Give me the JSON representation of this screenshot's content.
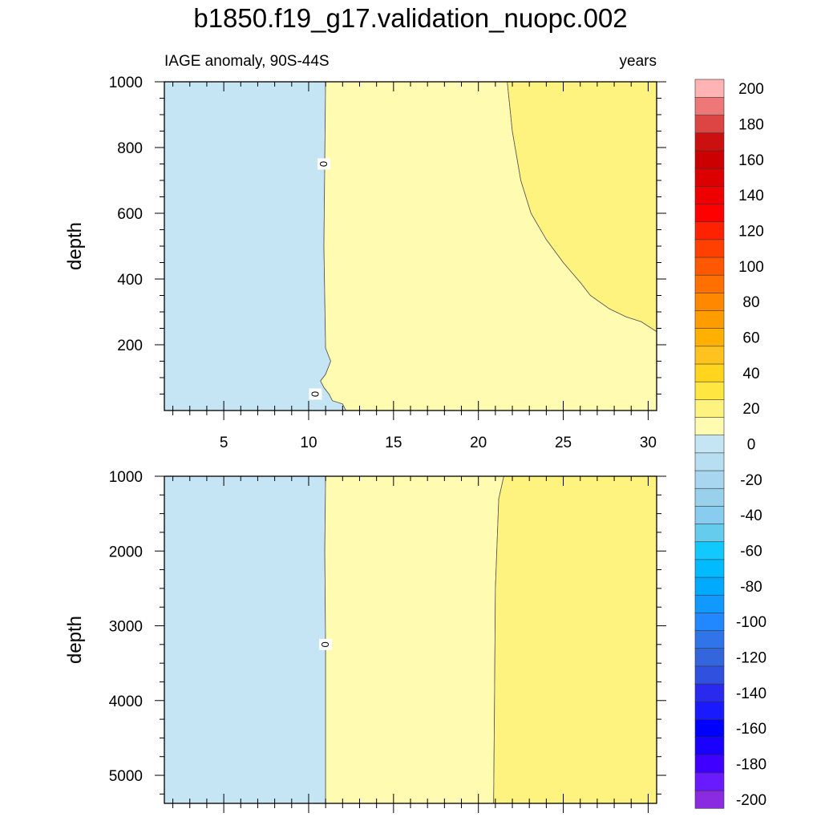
{
  "title": "b1850.f19_g17.validation_nuopc.002",
  "chart_data": {
    "type": "contour",
    "left_label": "IAGE anomaly, 90S-44S",
    "right_label": "years",
    "xaxis": {
      "range": [
        1.5,
        30.5
      ],
      "ticks": [
        5,
        10,
        15,
        20,
        25,
        30
      ]
    },
    "contour_label": "0",
    "colorbar": {
      "levels": [
        -200,
        -190,
        -180,
        -170,
        -160,
        -150,
        -140,
        -130,
        -120,
        -110,
        -100,
        -90,
        -80,
        -70,
        -60,
        -50,
        -40,
        -30,
        -20,
        -10,
        0,
        10,
        20,
        30,
        40,
        50,
        60,
        70,
        80,
        90,
        100,
        110,
        120,
        130,
        140,
        150,
        160,
        170,
        180,
        190,
        200
      ],
      "labels": [
        "200",
        "180",
        "160",
        "140",
        "120",
        "100",
        "80",
        "60",
        "40",
        "20",
        "0",
        "-20",
        "-40",
        "-60",
        "-80",
        "-100",
        "-120",
        "-140",
        "-160",
        "-180",
        "-200"
      ],
      "colors": [
        "#8a2be2",
        "#6a1aff",
        "#4000ff",
        "#1a00ff",
        "#0000ff",
        "#1a1aff",
        "#2a2aee",
        "#3050e0",
        "#3366dd",
        "#2f74e8",
        "#2288ff",
        "#1199ff",
        "#00aaff",
        "#00bbff",
        "#11c8ff",
        "#66ccee",
        "#88ccf0",
        "#99d0ec",
        "#a8d6f0",
        "#b8def2",
        "#c5e5f5",
        "#fffbb0",
        "#fff380",
        "#ffe640",
        "#ffd51e",
        "#ffc21e",
        "#ffb000",
        "#ff9c00",
        "#ff8800",
        "#ff7000",
        "#ff5800",
        "#ff4000",
        "#ff2200",
        "#ff0000",
        "#ee0000",
        "#dd0000",
        "#cc0000",
        "#cc1010",
        "#dd4444",
        "#ee7777",
        "#ffb3b3"
      ]
    },
    "panels": [
      {
        "name": "upper",
        "ylabel": "depth",
        "yaxis": {
          "range": [
            1000,
            0
          ],
          "ticks": [
            200,
            400,
            600,
            800,
            1000
          ],
          "minor_step": 50,
          "minor_start": 50
        },
        "fills": [
          {
            "color": "#c5e5f5",
            "points": [
              [
                1.5,
                0
              ],
              [
                1.5,
                1000
              ],
              [
                11.0,
                1000
              ],
              [
                10.95,
                760
              ],
              [
                10.9,
                500
              ],
              [
                11.0,
                190
              ],
              [
                11.3,
                150
              ],
              [
                11.0,
                110
              ],
              [
                10.7,
                90
              ],
              [
                10.9,
                70
              ],
              [
                11.2,
                50
              ],
              [
                11.4,
                30
              ],
              [
                12.0,
                20
              ],
              [
                12.2,
                0
              ]
            ]
          },
          {
            "color": "#fffbb0",
            "points": [
              [
                12.2,
                0
              ],
              [
                12.0,
                20
              ],
              [
                11.4,
                30
              ],
              [
                11.2,
                50
              ],
              [
                10.9,
                70
              ],
              [
                10.7,
                90
              ],
              [
                11.0,
                110
              ],
              [
                11.3,
                150
              ],
              [
                11.0,
                190
              ],
              [
                10.9,
                500
              ],
              [
                10.95,
                760
              ],
              [
                11.0,
                1000
              ],
              [
                21.7,
                1000
              ],
              [
                22.0,
                850
              ],
              [
                22.5,
                700
              ],
              [
                23.1,
                600
              ],
              [
                24.0,
                520
              ],
              [
                25.0,
                450
              ],
              [
                26.0,
                390
              ],
              [
                26.6,
                350
              ],
              [
                27.7,
                310
              ],
              [
                28.7,
                285
              ],
              [
                29.6,
                270
              ],
              [
                30.5,
                240
              ],
              [
                30.5,
                0
              ]
            ]
          },
          {
            "color": "#fff380",
            "points": [
              [
                21.7,
                1000
              ],
              [
                22.0,
                850
              ],
              [
                22.5,
                700
              ],
              [
                23.1,
                600
              ],
              [
                24.0,
                520
              ],
              [
                25.0,
                450
              ],
              [
                26.0,
                390
              ],
              [
                26.6,
                350
              ],
              [
                27.7,
                310
              ],
              [
                28.7,
                285
              ],
              [
                29.6,
                270
              ],
              [
                30.5,
                240
              ],
              [
                30.5,
                1000
              ]
            ]
          }
        ],
        "contour_labels": [
          [
            10.4,
            50
          ],
          [
            10.9,
            750
          ]
        ]
      },
      {
        "name": "lower",
        "ylabel": "depth",
        "yaxis": {
          "range": [
            1000,
            5375
          ],
          "ticks": [
            1000,
            2000,
            3000,
            4000,
            5000
          ],
          "minor_step": 250,
          "minor_start": 1250
        },
        "fills": [
          {
            "color": "#c5e5f5",
            "points": [
              [
                1.5,
                1000
              ],
              [
                1.5,
                5375
              ],
              [
                11.0,
                5375
              ],
              [
                11.0,
                3300
              ],
              [
                10.95,
                2000
              ],
              [
                11.0,
                1000
              ]
            ]
          },
          {
            "color": "#fffbb0",
            "points": [
              [
                11.0,
                1000
              ],
              [
                10.95,
                2000
              ],
              [
                11.0,
                3300
              ],
              [
                11.0,
                5375
              ],
              [
                20.9,
                5375
              ],
              [
                20.95,
                4000
              ],
              [
                21.0,
                2500
              ],
              [
                21.2,
                1300
              ],
              [
                21.5,
                1000
              ]
            ]
          },
          {
            "color": "#fff380",
            "points": [
              [
                21.5,
                1000
              ],
              [
                21.2,
                1300
              ],
              [
                21.0,
                2500
              ],
              [
                20.95,
                4000
              ],
              [
                20.9,
                5375
              ],
              [
                30.5,
                5375
              ],
              [
                30.5,
                1000
              ]
            ]
          }
        ],
        "contour_labels": [
          [
            11.0,
            3250
          ]
        ]
      }
    ]
  }
}
